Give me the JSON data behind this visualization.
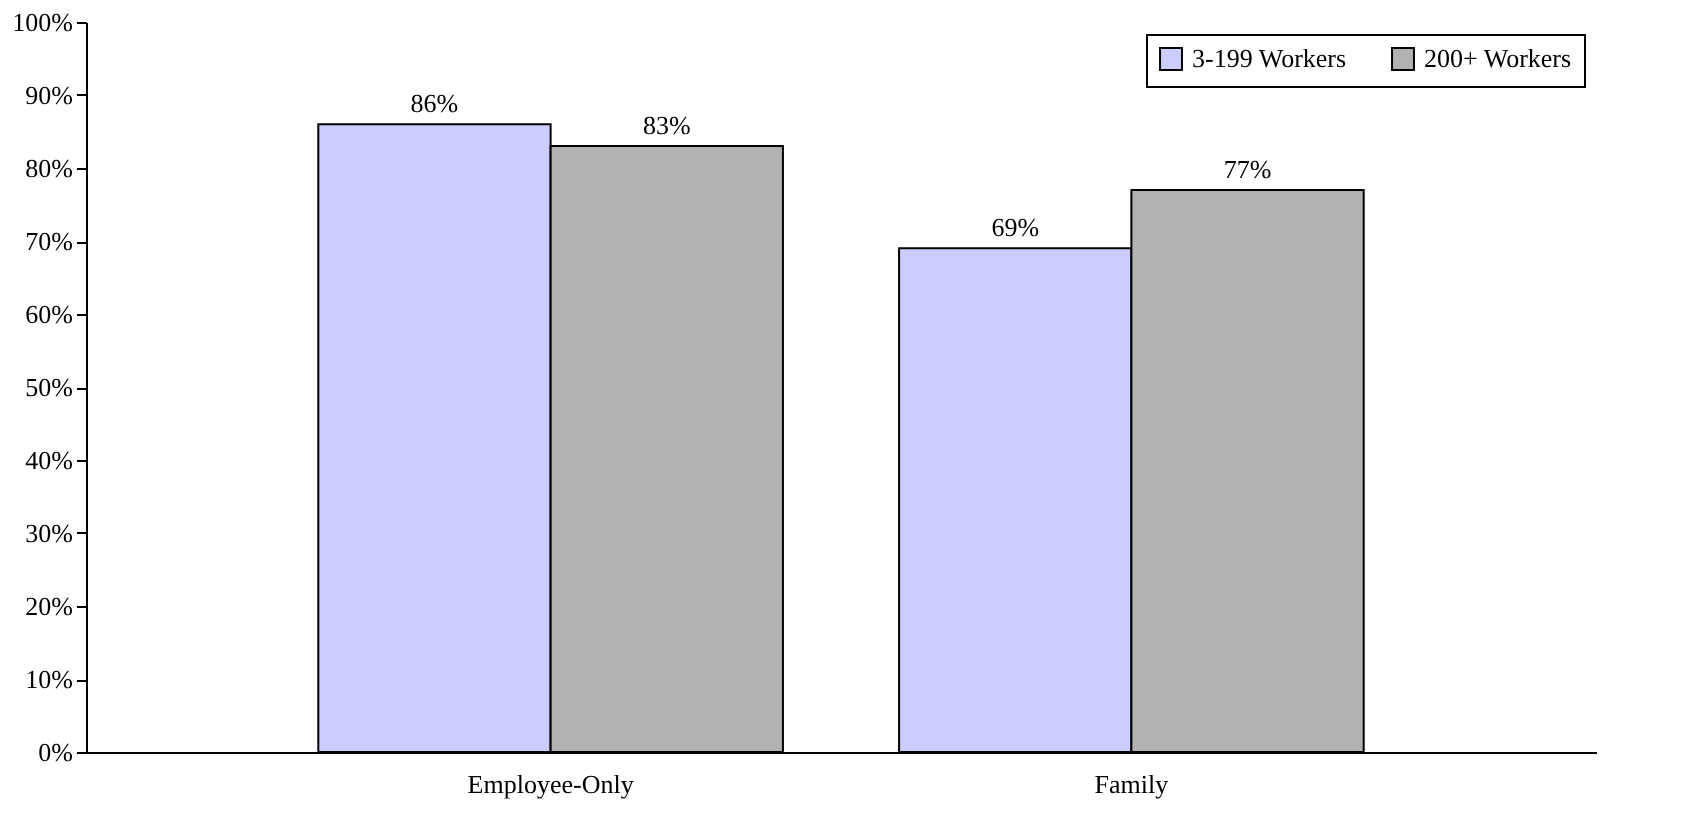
{
  "chart_data": {
    "type": "bar",
    "categories": [
      "Employee-Only",
      "Family"
    ],
    "series": [
      {
        "name": "3-199 Workers",
        "color": "#ccccff",
        "values": [
          86,
          69
        ],
        "value_labels": [
          "86%",
          "69%"
        ]
      },
      {
        "name": "200+ Workers",
        "color": "#b2b2b2",
        "values": [
          83,
          77
        ],
        "value_labels": [
          "83%",
          "77%"
        ]
      }
    ],
    "ylim": [
      0,
      100
    ],
    "yticks": [
      {
        "value": 0,
        "label": "0%"
      },
      {
        "value": 10,
        "label": "10%"
      },
      {
        "value": 20,
        "label": "20%"
      },
      {
        "value": 30,
        "label": "30%"
      },
      {
        "value": 40,
        "label": "40%"
      },
      {
        "value": 50,
        "label": "50%"
      },
      {
        "value": 60,
        "label": "60%"
      },
      {
        "value": 70,
        "label": "70%"
      },
      {
        "value": 80,
        "label": "80%"
      },
      {
        "value": 90,
        "label": "90%"
      },
      {
        "value": 100,
        "label": "100%"
      }
    ],
    "grid": false,
    "legend": "top right"
  }
}
